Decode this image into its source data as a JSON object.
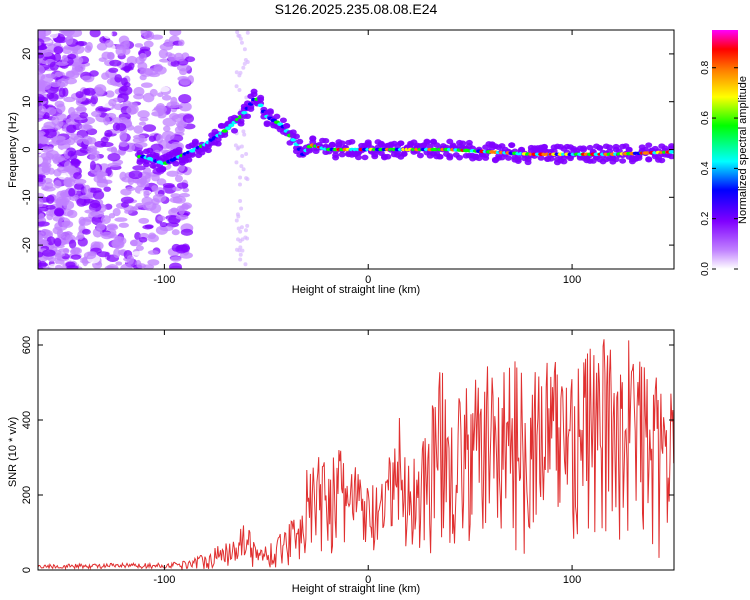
{
  "title": "S126.2025.235.08.08.E24",
  "chart_data": [
    {
      "type": "heatmap",
      "name": "spectrogram",
      "xlabel": "Height of straight line (km)",
      "ylabel": "Frequency (Hz)",
      "xlim": [
        -162,
        150
      ],
      "ylim": [
        -25,
        25
      ],
      "x_ticks": [
        -100,
        0,
        100
      ],
      "y_ticks": [
        -20,
        -10,
        0,
        10,
        20
      ],
      "x_tick_labels": [
        "-100",
        "0",
        "100"
      ],
      "y_tick_labels": [
        "-20",
        "-10",
        "0",
        "10",
        "20"
      ],
      "colorbar": {
        "label": "Normalized spectral amplitude",
        "range": [
          0,
          0.95
        ],
        "ticks": [
          0,
          0.2,
          0.4,
          0.6,
          0.8
        ],
        "tick_labels": [
          "0.0",
          "0.2",
          "0.4",
          "0.6",
          "0.8"
        ],
        "colors": [
          "#ffffff",
          "#c080ff",
          "#8000ff",
          "#0000ff",
          "#00ffff",
          "#00ff00",
          "#ffff00",
          "#ff8000",
          "#ff0000",
          "#ff00ff"
        ]
      },
      "ridge": [
        {
          "x": -110,
          "y": -1.5
        },
        {
          "x": -100,
          "y": -3
        },
        {
          "x": -90,
          "y": -1
        },
        {
          "x": -80,
          "y": 1
        },
        {
          "x": -70,
          "y": 4
        },
        {
          "x": -62,
          "y": 7
        },
        {
          "x": -55,
          "y": 11
        },
        {
          "x": -50,
          "y": 7
        },
        {
          "x": -42,
          "y": 5
        },
        {
          "x": -35,
          "y": 1
        },
        {
          "x": -32,
          "y": -1
        },
        {
          "x": -28,
          "y": 1
        },
        {
          "x": -20,
          "y": 0
        },
        {
          "x": 0,
          "y": 0
        },
        {
          "x": 40,
          "y": 0
        },
        {
          "x": 80,
          "y": -1
        },
        {
          "x": 120,
          "y": -1
        },
        {
          "x": 150,
          "y": -0.5
        }
      ]
    },
    {
      "type": "line",
      "name": "snr",
      "xlabel": "Height of straight line (km)",
      "ylabel": "SNR (10 * v/v)",
      "xlim": [
        -162,
        150
      ],
      "ylim": [
        0,
        640
      ],
      "x_ticks": [
        -100,
        0,
        100
      ],
      "y_ticks": [
        0,
        200,
        400,
        600
      ],
      "x_tick_labels": [
        "-100",
        "0",
        "100"
      ],
      "y_tick_labels": [
        "0",
        "200",
        "400",
        "600"
      ],
      "color": "#e03030",
      "envelope": [
        {
          "x": -162,
          "y": 15
        },
        {
          "x": -120,
          "y": 18
        },
        {
          "x": -100,
          "y": 18
        },
        {
          "x": -90,
          "y": 25
        },
        {
          "x": -80,
          "y": 45
        },
        {
          "x": -70,
          "y": 75
        },
        {
          "x": -60,
          "y": 140
        },
        {
          "x": -55,
          "y": 60
        },
        {
          "x": -45,
          "y": 80
        },
        {
          "x": -35,
          "y": 170
        },
        {
          "x": -30,
          "y": 270
        },
        {
          "x": -20,
          "y": 330
        },
        {
          "x": -10,
          "y": 320
        },
        {
          "x": 0,
          "y": 230
        },
        {
          "x": 8,
          "y": 230
        },
        {
          "x": 14,
          "y": 440
        },
        {
          "x": 20,
          "y": 300
        },
        {
          "x": 25,
          "y": 330
        },
        {
          "x": 30,
          "y": 430
        },
        {
          "x": 35,
          "y": 540
        },
        {
          "x": 45,
          "y": 470
        },
        {
          "x": 60,
          "y": 560
        },
        {
          "x": 80,
          "y": 560
        },
        {
          "x": 100,
          "y": 590
        },
        {
          "x": 118,
          "y": 620
        },
        {
          "x": 128,
          "y": 640
        },
        {
          "x": 140,
          "y": 520
        },
        {
          "x": 150,
          "y": 470
        }
      ]
    }
  ]
}
